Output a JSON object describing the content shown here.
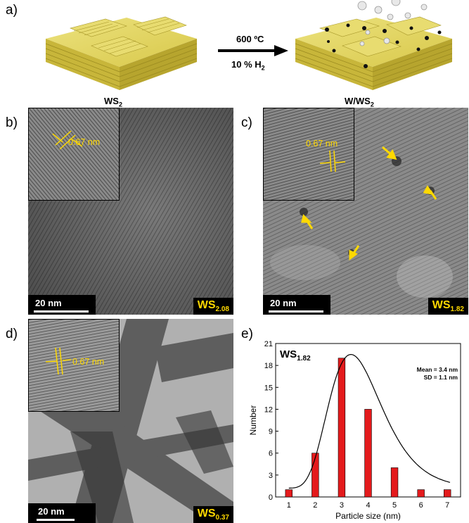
{
  "panel_labels": {
    "a": "a)",
    "b": "b)",
    "c": "c)",
    "d": "d)",
    "e": "e)"
  },
  "schematic": {
    "left_label": "WS",
    "left_sub": "2",
    "right_label": "W/WS",
    "right_sub": "2",
    "arrow_top": "600 ºC",
    "arrow_bottom": "10 % H",
    "arrow_bottom_sub": "2"
  },
  "micrographs": {
    "b": {
      "inset_spacing": "0.67 nm",
      "scale_bar": "20 nm",
      "sample": "WS",
      "sample_sub": "2.08"
    },
    "c": {
      "inset_spacing": "0.67 nm",
      "scale_bar": "20 nm",
      "sample": "WS",
      "sample_sub": "1.82"
    },
    "d": {
      "inset_spacing": "0.67 nm",
      "scale_bar": "20 nm",
      "sample": "WS",
      "sample_sub": "0.37"
    }
  },
  "colors": {
    "annotation": "#ffd900",
    "bar": "#e41a1c",
    "layer": "#e3d566"
  },
  "chart_data": {
    "type": "bar",
    "title": "WS",
    "title_sub": "1.82",
    "xlabel": "Particle size (nm)",
    "ylabel": "Number",
    "x": [
      1,
      2,
      3,
      4,
      5,
      6,
      7
    ],
    "values": [
      1,
      6,
      19,
      12,
      4,
      1,
      1
    ],
    "xlim": [
      0.5,
      7.5
    ],
    "ylim": [
      0,
      21
    ],
    "yticks": [
      0,
      3,
      6,
      9,
      12,
      15,
      18,
      21
    ],
    "annotation_mean": "Mean = 3.4 nm",
    "annotation_sd": "SD = 1.1 nm",
    "fit": "gaussian"
  }
}
